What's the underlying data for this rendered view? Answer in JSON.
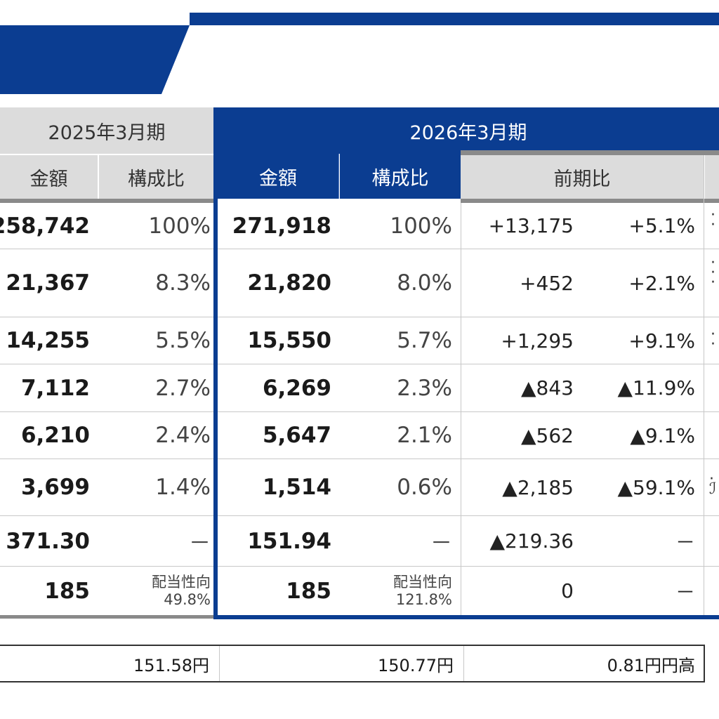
{
  "header": {
    "period_prev": "2025年3月期",
    "period_cur": "2026年3月期",
    "col_amount": "金額",
    "col_ratio": "構成比",
    "col_yoy": "前期比"
  },
  "rows": [
    {
      "prev_amount": "258,742",
      "prev_ratio": "100%",
      "cur_amount": "271,918",
      "cur_ratio": "100%",
      "yoy_diff": "+13,175",
      "yoy_pct": "+5.1%"
    },
    {
      "prev_amount": "21,367",
      "prev_ratio": "8.3%",
      "cur_amount": "21,820",
      "cur_ratio": "8.0%",
      "yoy_diff": "+452",
      "yoy_pct": "+2.1%"
    },
    {
      "prev_amount": "14,255",
      "prev_ratio": "5.5%",
      "cur_amount": "15,550",
      "cur_ratio": "5.7%",
      "yoy_diff": "+1,295",
      "yoy_pct": "+9.1%"
    },
    {
      "prev_amount": "7,112",
      "prev_ratio": "2.7%",
      "cur_amount": "6,269",
      "cur_ratio": "2.3%",
      "yoy_diff": "▲843",
      "yoy_pct": "▲11.9%"
    },
    {
      "prev_amount": "6,210",
      "prev_ratio": "2.4%",
      "cur_amount": "5,647",
      "cur_ratio": "2.1%",
      "yoy_diff": "▲562",
      "yoy_pct": "▲9.1%"
    },
    {
      "prev_amount": "3,699",
      "prev_ratio": "1.4%",
      "cur_amount": "1,514",
      "cur_ratio": "0.6%",
      "yoy_diff": "▲2,185",
      "yoy_pct": "▲59.1%"
    },
    {
      "prev_amount": "371.30",
      "prev_ratio": "－",
      "cur_amount": "151.94",
      "cur_ratio": "－",
      "yoy_diff": "▲219.36",
      "yoy_pct": "－"
    },
    {
      "prev_amount": "185",
      "prev_ratio_label": "配当性向",
      "prev_ratio": "49.8%",
      "cur_amount": "185",
      "cur_ratio_label": "配当性向",
      "cur_ratio": "121.8%",
      "yoy_diff": "0",
      "yoy_pct": "－"
    }
  ],
  "fx": {
    "prev": "151.58円",
    "cur": "150.77円",
    "diff": "0.81円円高"
  },
  "colors": {
    "accent": "#0b3d91",
    "header_gray": "#dcdcdc"
  }
}
